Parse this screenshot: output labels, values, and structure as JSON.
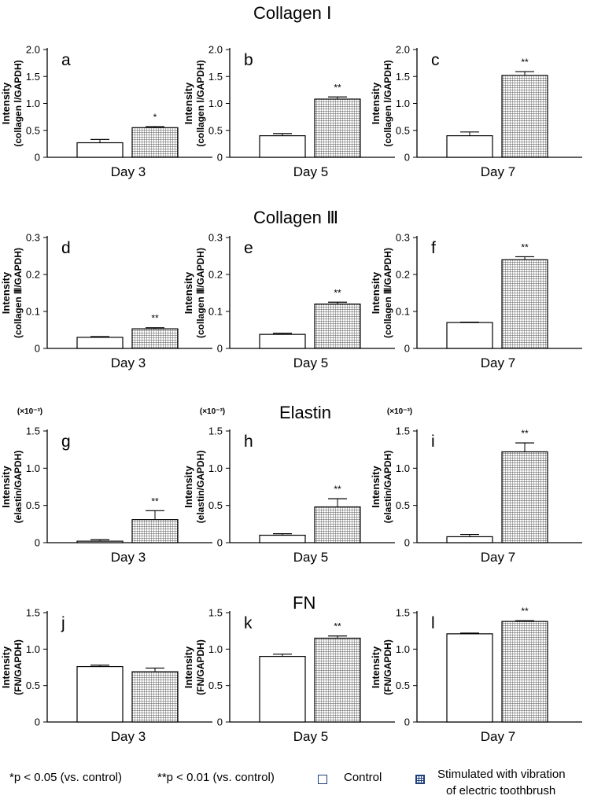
{
  "section_titles": [
    "Collagen Ⅰ",
    "Collagen Ⅲ",
    "Elastin",
    "FN"
  ],
  "footer": {
    "p05": "*p < 0.05 (vs. control)",
    "p01": "**p < 0.01 (vs. control)",
    "control_label": "Control",
    "stim_label_line1": "Stimulated with vibration",
    "stim_label_line2": "of electric toothbrush"
  },
  "colors": {
    "legend_border": "#1f3f7a",
    "bar_outline": "#000000",
    "hatch": "#555555"
  },
  "chart_data": [
    {
      "panel": "a",
      "type": "bar",
      "section": "Collagen Ⅰ",
      "xlabel": "Day 3",
      "ylabel": [
        "Intensity",
        "(collagen Ⅰ/GAPDH)"
      ],
      "ylim": [
        0,
        2.0
      ],
      "ticks": [
        "0",
        "0.5",
        "1.0",
        "1.5",
        "2.0"
      ],
      "tick_values": [
        0,
        0.5,
        1.0,
        1.5,
        2.0
      ],
      "multiplier": "",
      "values": [
        0.27,
        0.55
      ],
      "errors": [
        0.06,
        0.02
      ],
      "significance": "*"
    },
    {
      "panel": "b",
      "type": "bar",
      "section": "Collagen Ⅰ",
      "xlabel": "Day 5",
      "ylabel": [
        "Intensity",
        "(collagen Ⅰ/GAPDH)"
      ],
      "ylim": [
        0,
        2.0
      ],
      "ticks": [
        "0",
        "0.5",
        "1.0",
        "1.5",
        "2.0"
      ],
      "tick_values": [
        0,
        0.5,
        1.0,
        1.5,
        2.0
      ],
      "multiplier": "",
      "values": [
        0.4,
        1.08
      ],
      "errors": [
        0.04,
        0.04
      ],
      "significance": "**"
    },
    {
      "panel": "c",
      "type": "bar",
      "section": "Collagen Ⅰ",
      "xlabel": "Day 7",
      "ylabel": [
        "Intensity",
        "(collagen Ⅰ/GAPDH)"
      ],
      "ylim": [
        0,
        2.0
      ],
      "ticks": [
        "0",
        "0.5",
        "1.0",
        "1.5",
        "2.0"
      ],
      "tick_values": [
        0,
        0.5,
        1.0,
        1.5,
        2.0
      ],
      "multiplier": "",
      "values": [
        0.4,
        1.52
      ],
      "errors": [
        0.07,
        0.07
      ],
      "significance": "**"
    },
    {
      "panel": "d",
      "type": "bar",
      "section": "Collagen Ⅲ",
      "xlabel": "Day 3",
      "ylabel": [
        "Intensity",
        "(collagen Ⅲ/GAPDH)"
      ],
      "ylim": [
        0,
        0.3
      ],
      "ticks": [
        "0",
        "0.1",
        "0.2",
        "0.3"
      ],
      "tick_values": [
        0,
        0.1,
        0.2,
        0.3
      ],
      "multiplier": "",
      "values": [
        0.03,
        0.053
      ],
      "errors": [
        0.002,
        0.003
      ],
      "significance": "**"
    },
    {
      "panel": "e",
      "type": "bar",
      "section": "Collagen Ⅲ",
      "xlabel": "Day 5",
      "ylabel": [
        "Intensity",
        "(collagen Ⅲ/GAPDH)"
      ],
      "ylim": [
        0,
        0.3
      ],
      "ticks": [
        "0",
        "0.1",
        "0.2",
        "0.3"
      ],
      "tick_values": [
        0,
        0.1,
        0.2,
        0.3
      ],
      "multiplier": "",
      "values": [
        0.038,
        0.12
      ],
      "errors": [
        0.003,
        0.005
      ],
      "significance": "**"
    },
    {
      "panel": "f",
      "type": "bar",
      "section": "Collagen Ⅲ",
      "xlabel": "Day 7",
      "ylabel": [
        "Intensity",
        "(collagen Ⅲ/GAPDH)"
      ],
      "ylim": [
        0,
        0.3
      ],
      "ticks": [
        "0",
        "0.1",
        "0.2",
        "0.3"
      ],
      "tick_values": [
        0,
        0.1,
        0.2,
        0.3
      ],
      "multiplier": "",
      "values": [
        0.07,
        0.24
      ],
      "errors": [
        0.001,
        0.008
      ],
      "significance": "**"
    },
    {
      "panel": "g",
      "type": "bar",
      "section": "Elastin",
      "xlabel": "Day 3",
      "ylabel": [
        "Intensity",
        "(elastin/GAPDH)"
      ],
      "ylim": [
        0,
        1.5
      ],
      "ticks": [
        "0",
        "0.5",
        "1.0",
        "1.5"
      ],
      "tick_values": [
        0,
        0.5,
        1.0,
        1.5
      ],
      "multiplier": "(×10⁻³)",
      "values": [
        0.02,
        0.31
      ],
      "errors": [
        0.02,
        0.12
      ],
      "significance": "**"
    },
    {
      "panel": "h",
      "type": "bar",
      "section": "Elastin",
      "xlabel": "Day 5",
      "ylabel": [
        "Intensity",
        "(elastin/GAPDH)"
      ],
      "ylim": [
        0,
        1.5
      ],
      "ticks": [
        "0",
        "0.5",
        "1.0",
        "1.5"
      ],
      "tick_values": [
        0,
        0.5,
        1.0,
        1.5
      ],
      "multiplier": "(×10⁻³)",
      "values": [
        0.1,
        0.48
      ],
      "errors": [
        0.02,
        0.11
      ],
      "significance": "**"
    },
    {
      "panel": "i",
      "type": "bar",
      "section": "Elastin",
      "xlabel": "Day 7",
      "ylabel": [
        "Intensity",
        "(elastin/GAPDH)"
      ],
      "ylim": [
        0,
        1.5
      ],
      "ticks": [
        "0",
        "0.5",
        "1.0",
        "1.5"
      ],
      "tick_values": [
        0,
        0.5,
        1.0,
        1.5
      ],
      "multiplier": "(×10⁻³)",
      "values": [
        0.08,
        1.22
      ],
      "errors": [
        0.03,
        0.12
      ],
      "significance": "**"
    },
    {
      "panel": "j",
      "type": "bar",
      "section": "FN",
      "xlabel": "Day 3",
      "ylabel": [
        "Intensity",
        "(FN/GAPDH)"
      ],
      "ylim": [
        0,
        1.5
      ],
      "ticks": [
        "0",
        "0.5",
        "1.0",
        "1.5"
      ],
      "tick_values": [
        0,
        0.5,
        1.0,
        1.5
      ],
      "multiplier": "",
      "values": [
        0.76,
        0.69
      ],
      "errors": [
        0.02,
        0.05
      ],
      "significance": ""
    },
    {
      "panel": "k",
      "type": "bar",
      "section": "FN",
      "xlabel": "Day 5",
      "ylabel": [
        "Intensity",
        "(FN/GAPDH)"
      ],
      "ylim": [
        0,
        1.5
      ],
      "ticks": [
        "0",
        "0.5",
        "1.0",
        "1.5"
      ],
      "tick_values": [
        0,
        0.5,
        1.0,
        1.5
      ],
      "multiplier": "",
      "values": [
        0.9,
        1.15
      ],
      "errors": [
        0.03,
        0.03
      ],
      "significance": "**"
    },
    {
      "panel": "l",
      "type": "bar",
      "section": "FN",
      "xlabel": "Day 7",
      "ylabel": [
        "Intensity",
        "(FN/GAPDH)"
      ],
      "ylim": [
        0,
        1.5
      ],
      "ticks": [
        "0",
        "0.5",
        "1.0",
        "1.5"
      ],
      "tick_values": [
        0,
        0.5,
        1.0,
        1.5
      ],
      "multiplier": "",
      "values": [
        1.21,
        1.38
      ],
      "errors": [
        0.01,
        0.01
      ],
      "significance": "**"
    }
  ]
}
